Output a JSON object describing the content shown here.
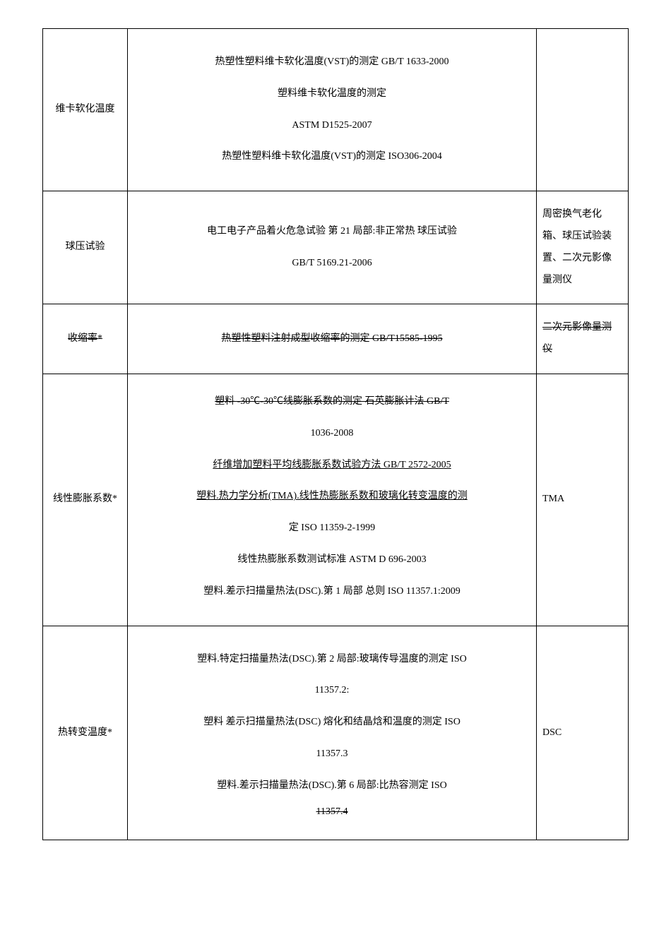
{
  "rows": [
    {
      "left": "维卡软化温度",
      "mid": [
        {
          "text": "热塑性塑料维卡软化温度(VST)的测定 GB/T 1633-2000",
          "cls": "para"
        },
        {
          "text": "塑料维卡软化温度的测定",
          "cls": "para"
        },
        {
          "text": "ASTM D1525-2007",
          "cls": "para"
        },
        {
          "text": "热塑性塑料维卡软化温度(VST)的测定 ISO306-2004",
          "cls": "para"
        }
      ],
      "right": ""
    },
    {
      "left": "球压试验",
      "mid": [
        {
          "text": "电工电子产品着火危急试验 第 21 局部:非正常热 球压试验",
          "cls": "para"
        },
        {
          "text": "GB/T 5169.21-2006",
          "cls": "para"
        }
      ],
      "right": "周密换气老化箱、球压试验装置、二次元影像量测仪"
    },
    {
      "left": "收缩率*",
      "leftCls": "strike",
      "mid": [
        {
          "text": "热塑性塑料注射成型收缩率的测定 GB/T15585-1995",
          "cls": "strike para-tight"
        }
      ],
      "right": "二次元影像量测仪",
      "rightCls": "strike"
    },
    {
      "left": "线性膨胀系数*",
      "mid": [
        {
          "text": "塑料 -30℃-30℃线膨胀系数的测定 石英膨胀计法 GB/T",
          "cls": "strike para-tight"
        },
        {
          "text": "1036-2008",
          "cls": "para"
        },
        {
          "text": "纤维增加塑料平均线膨胀系数试验方法 GB/T  2572-2005",
          "cls": "underline para"
        },
        {
          "text": "塑料.热力学分析(TMA).线性热膨胀系数和玻璃化转变温度的测",
          "cls": "underline para-tight"
        },
        {
          "text": "定 ISO 11359-2-1999",
          "cls": "para"
        },
        {
          "text": "线性热膨胀系数测试标准 ASTM D 696-2003",
          "cls": "para"
        },
        {
          "text": "塑料.差示扫描量热法(DSC).第 1 局部 总则 ISO 11357.1:2009",
          "cls": "para"
        }
      ],
      "right": "TMA"
    },
    {
      "left": "热转变温度*",
      "mid": [
        {
          "text": "塑料.特定扫描量热法(DSC).第 2 局部:玻璃传导温度的测定 ISO",
          "cls": "para"
        },
        {
          "text": "11357.2:",
          "cls": "para"
        },
        {
          "text": "塑料 差示扫描量热法(DSC) 熔化和结晶焓和温度的测定 ISO",
          "cls": "para"
        },
        {
          "text": "11357.3",
          "cls": "para"
        },
        {
          "text": "塑料.差示扫描量热法(DSC).第 6 局部:比热容测定 ISO",
          "cls": "para-tight"
        },
        {
          "text": "11357.4",
          "cls": "strike para-tight"
        }
      ],
      "right": "DSC"
    }
  ]
}
